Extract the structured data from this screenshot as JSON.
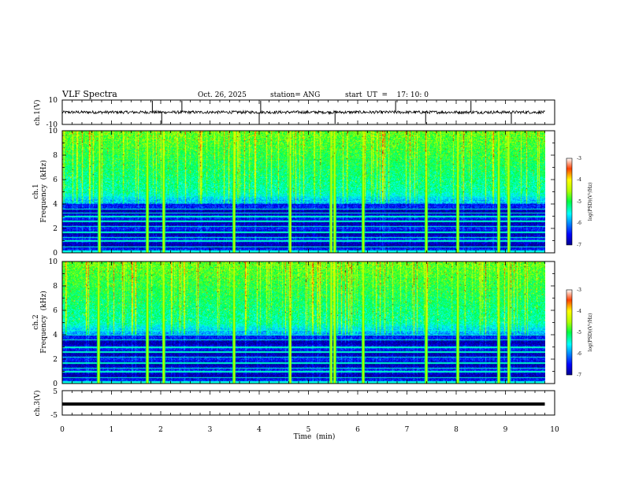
{
  "header": {
    "title": "VLF Spectra",
    "date": "Oct. 26, 2025",
    "station": "station= ANG",
    "start": "start  UT  =    17: 10: 0"
  },
  "chart_data": [
    {
      "type": "line",
      "id": "ch1_waveform",
      "ylabel": "ch.1(V)",
      "ylim": [
        -10,
        10
      ],
      "y_ticks": [
        "10",
        "-10"
      ],
      "xlim": [
        0,
        10
      ],
      "baseline_value": 0,
      "noise_amplitude": 1.2,
      "spikes_x": [
        1.83,
        2.02,
        2.43,
        4.0,
        4.03,
        5.54,
        6.77,
        7.38,
        8.3,
        9.12
      ]
    },
    {
      "type": "heatmap",
      "id": "ch1_spectrogram",
      "ylabel_line1": "ch.1",
      "ylabel_line2": "Frequency  (kHz)",
      "ylim": [
        0,
        10
      ],
      "y_ticks": [
        "0",
        "2",
        "4",
        "6",
        "8",
        "10"
      ],
      "xlim": [
        0,
        9.8
      ],
      "colorbar_label": "log(PSD)(V²/Hz)",
      "colorbar_range": [
        -7,
        -3
      ],
      "colorbar_ticks": [
        "-3",
        "-4",
        "-5",
        "-6",
        "-7"
      ],
      "noise_lines_khz": [
        0.5,
        1.0,
        1.3,
        1.7,
        2.2,
        2.6,
        3.0,
        3.3,
        3.6,
        4.2,
        4.7
      ],
      "sferic_times_min": [
        0.75,
        1.72,
        2.05,
        3.48,
        4.62,
        5.45,
        5.52,
        6.1,
        7.38,
        8.02,
        8.85,
        9.05
      ]
    },
    {
      "type": "heatmap",
      "id": "ch2_spectrogram",
      "ylabel_line1": "ch.2",
      "ylabel_line2": "Frequency  (kHz)",
      "ylim": [
        0,
        10
      ],
      "y_ticks": [
        "0",
        "2",
        "4",
        "6",
        "8",
        "10"
      ],
      "xlim": [
        0,
        9.8
      ],
      "colorbar_label": "log(PSD)(V²/Hz)",
      "colorbar_range": [
        -7,
        -3
      ],
      "colorbar_ticks": [
        "-3",
        "-4",
        "-5",
        "-6",
        "-7"
      ],
      "noise_lines_khz": [
        0.5,
        1.0,
        1.3,
        1.7,
        2.2,
        2.6,
        3.0,
        3.6,
        4.0,
        4.4
      ],
      "sferic_times_min": [
        0.73,
        1.72,
        2.05,
        3.48,
        4.62,
        5.45,
        5.52,
        6.1,
        7.38,
        8.02,
        8.85,
        9.05
      ]
    },
    {
      "type": "line",
      "id": "ch3_waveform",
      "ylabel": "ch.3(V)",
      "ylim": [
        -5,
        5
      ],
      "y_ticks": [
        "5",
        "-5"
      ],
      "xlim": [
        0,
        10
      ],
      "constant_value": -0.5
    }
  ],
  "x_axis": {
    "label": "Time  (min)",
    "ticks": [
      "0",
      "1",
      "2",
      "3",
      "4",
      "5",
      "6",
      "7",
      "8",
      "9",
      "10"
    ]
  }
}
